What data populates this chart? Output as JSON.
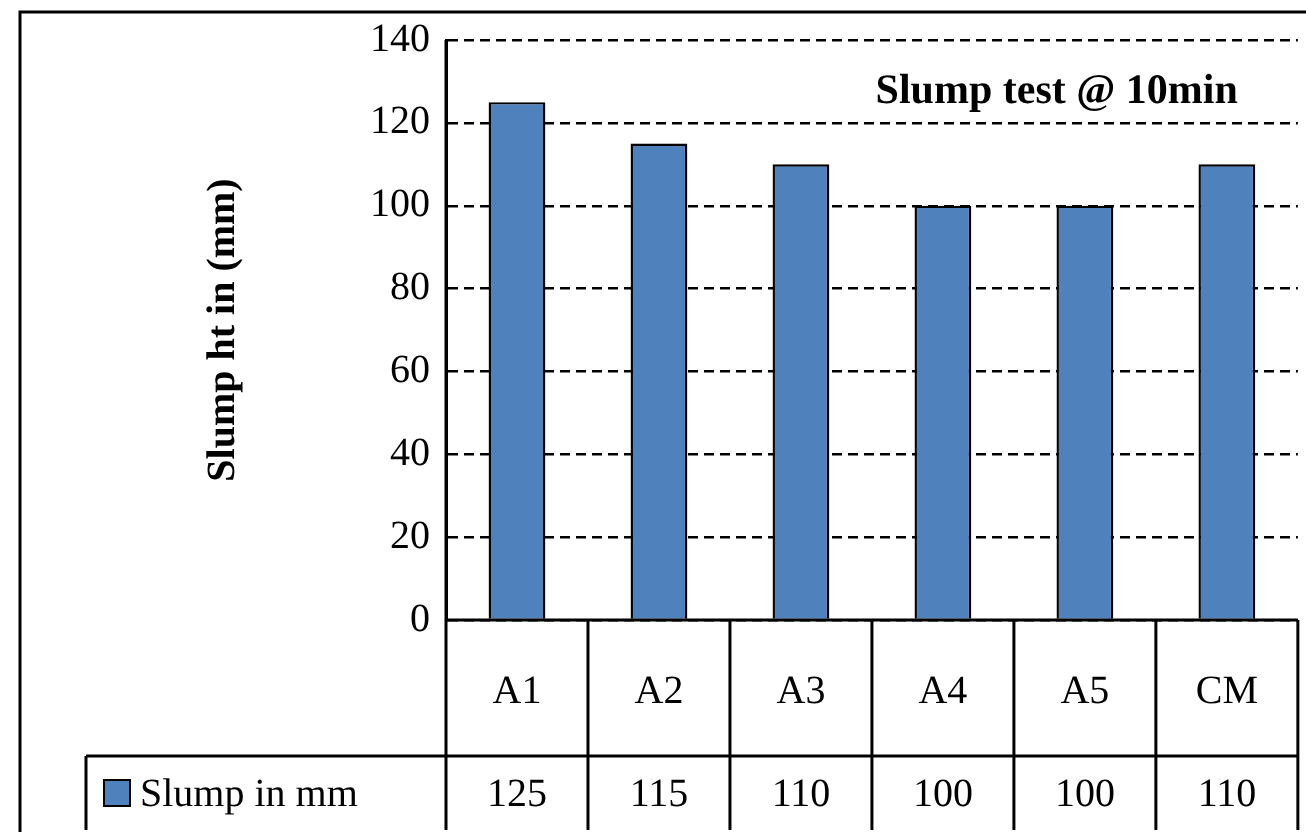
{
  "chart_data": {
    "type": "bar",
    "title": "Slump test @ 10min",
    "ylabel": "Slump ht in (mm)",
    "categories": [
      "A1",
      "A2",
      "A3",
      "A4",
      "A5",
      "CM"
    ],
    "series": [
      {
        "name": "Slump in mm",
        "color": "#4f81bd",
        "values": [
          125,
          115,
          110,
          100,
          100,
          110
        ]
      }
    ],
    "ylim": [
      0,
      140
    ],
    "yticks": [
      0,
      20,
      40,
      60,
      80,
      100,
      120,
      140
    ],
    "grid": "y",
    "legend": "bottom",
    "data_labels": true
  }
}
